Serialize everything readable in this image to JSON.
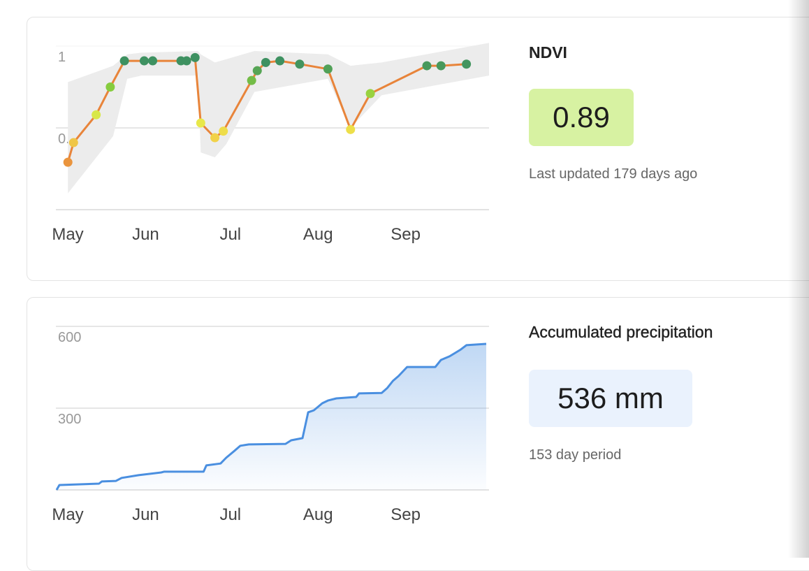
{
  "chart_data": [
    {
      "type": "line",
      "title": "NDVI",
      "value": 0.89,
      "note": "Last updated 179 days ago",
      "value_box_color": "#d7f2a2",
      "x": [
        4,
        6,
        14,
        19,
        24,
        31,
        34,
        44,
        46,
        49,
        51,
        56,
        59,
        69,
        71,
        74,
        79,
        86,
        96,
        104,
        111,
        131,
        136,
        145
      ],
      "values": [
        0.29,
        0.41,
        0.58,
        0.75,
        0.91,
        0.91,
        0.91,
        0.91,
        0.91,
        0.93,
        0.53,
        0.44,
        0.48,
        0.79,
        0.85,
        0.9,
        0.91,
        0.89,
        0.86,
        0.49,
        0.71,
        0.88,
        0.88,
        0.89
      ],
      "colorscale": [
        [
          0.25,
          "#e8843a"
        ],
        [
          0.45,
          "#f1d64a"
        ],
        [
          0.55,
          "#e6ec4a"
        ],
        [
          0.75,
          "#86cc3e"
        ],
        [
          0.9,
          "#3e9161"
        ]
      ],
      "band": {
        "color": "#ececec",
        "x": [
          4,
          20,
          25,
          30,
          50,
          51,
          56,
          60,
          70,
          96,
          104,
          115,
          153
        ],
        "low": [
          0.1,
          0.45,
          0.8,
          0.82,
          0.82,
          0.35,
          0.32,
          0.4,
          0.72,
          0.8,
          0.5,
          0.7,
          0.82
        ],
        "high": [
          0.78,
          0.88,
          0.95,
          0.96,
          0.97,
          0.95,
          0.9,
          0.92,
          0.97,
          0.95,
          0.88,
          0.9,
          1.02
        ]
      },
      "xlim": [
        0,
        153
      ],
      "xticks": [
        {
          "value": 0,
          "label": "May"
        },
        {
          "value": 31,
          "label": "Jun"
        },
        {
          "value": 61,
          "label": "Jul"
        },
        {
          "value": 92,
          "label": "Aug"
        },
        {
          "value": 123,
          "label": "Sep"
        }
      ],
      "ylim": [
        0,
        1
      ],
      "yticks": [
        0.5,
        1
      ],
      "grid": true
    },
    {
      "type": "area",
      "title": "Accumulated precipitation",
      "value": 536,
      "value_label": "536 mm",
      "note": "153 day period",
      "value_box_color": "#eaf2fd",
      "color": "#4a8fe0",
      "x": [
        0,
        1,
        15,
        16,
        21,
        23,
        29,
        37,
        38,
        52,
        53,
        58,
        60,
        63,
        65,
        68,
        81,
        83,
        87,
        89,
        91,
        94,
        96,
        99,
        106,
        107,
        115,
        117,
        119,
        121,
        124,
        134,
        136,
        139,
        143,
        145,
        152
      ],
      "values": [
        0,
        18,
        23,
        31,
        33,
        44,
        54,
        64,
        67,
        67,
        90,
        97,
        118,
        144,
        162,
        167,
        169,
        182,
        190,
        285,
        292,
        318,
        328,
        336,
        341,
        354,
        356,
        374,
        400,
        418,
        451,
        451,
        477,
        490,
        515,
        531,
        536
      ],
      "xlim": [
        0,
        153
      ],
      "xticks": [
        {
          "value": 0,
          "label": "May"
        },
        {
          "value": 31,
          "label": "Jun"
        },
        {
          "value": 61,
          "label": "Jul"
        },
        {
          "value": 92,
          "label": "Aug"
        },
        {
          "value": 123,
          "label": "Sep"
        }
      ],
      "ylim": [
        0,
        600
      ],
      "yticks": [
        300,
        600
      ],
      "grid": true
    }
  ]
}
